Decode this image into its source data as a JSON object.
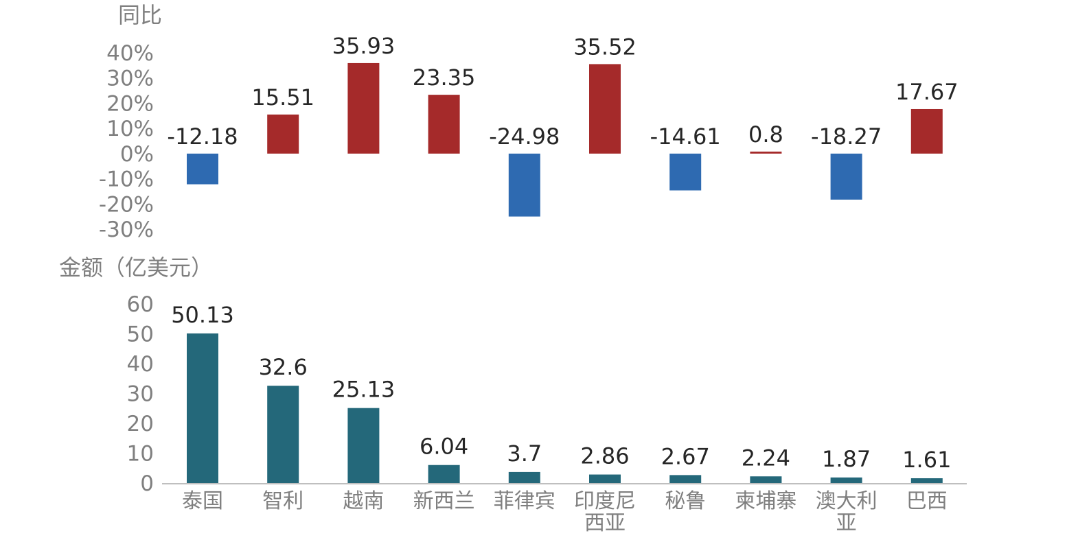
{
  "chart_data": [
    {
      "type": "bar",
      "ylabel": "同比",
      "ylim": [
        -30,
        40
      ],
      "yticks": [
        "40%",
        "30%",
        "20%",
        "10%",
        "0%",
        "-10%",
        "-20%",
        "-30%"
      ],
      "categories": [
        "泰国",
        "智利",
        "越南",
        "新西兰",
        "菲律宾",
        "印度尼西亚",
        "秘鲁",
        "柬埔寨",
        "澳大利亚",
        "巴西"
      ],
      "values": [
        -12.18,
        15.51,
        35.93,
        23.35,
        -24.98,
        35.52,
        -14.61,
        0.8,
        -18.27,
        17.67
      ],
      "labels": [
        "-12.18",
        "15.51",
        "35.93",
        "23.35",
        "-24.98",
        "35.52",
        "-14.61",
        "0.8",
        "-18.27",
        "17.67"
      ],
      "colors": {
        "positive": "#a52a2a",
        "negative": "#2e6ab1"
      },
      "grid": false
    },
    {
      "type": "bar",
      "ylabel": "金额（亿美元）",
      "ylim": [
        0,
        60
      ],
      "yticks": [
        "60",
        "50",
        "40",
        "30",
        "20",
        "10",
        "0"
      ],
      "categories": [
        "泰国",
        "智利",
        "越南",
        "新西兰",
        "菲律宾",
        "印度尼西亚",
        "秘鲁",
        "柬埔寨",
        "澳大利亚",
        "巴西"
      ],
      "category_lines": [
        [
          "泰国"
        ],
        [
          "智利"
        ],
        [
          "越南"
        ],
        [
          "新西兰"
        ],
        [
          "菲律宾"
        ],
        [
          "印度尼",
          "西亚"
        ],
        [
          "秘鲁"
        ],
        [
          "柬埔寨"
        ],
        [
          "澳大利",
          "亚"
        ],
        [
          "巴西"
        ]
      ],
      "values": [
        50.13,
        32.6,
        25.13,
        6.04,
        3.7,
        2.86,
        2.67,
        2.24,
        1.87,
        1.61
      ],
      "labels": [
        "50.13",
        "32.6",
        "25.13",
        "6.04",
        "3.7",
        "2.86",
        "2.67",
        "2.24",
        "1.87",
        "1.61"
      ],
      "colors": {
        "bar": "#24687a"
      },
      "grid": false
    }
  ]
}
